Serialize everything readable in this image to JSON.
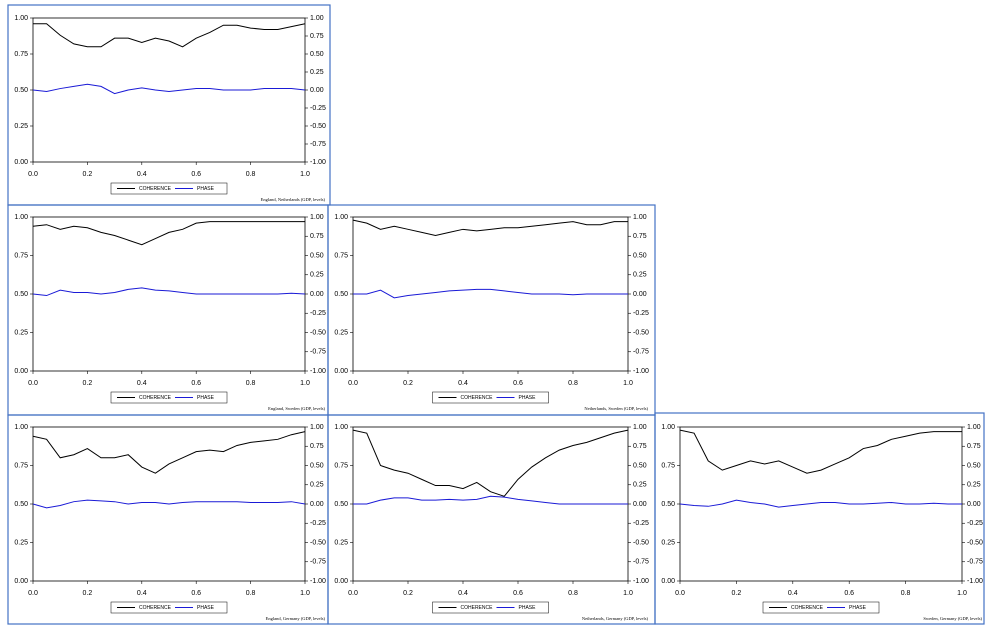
{
  "chart_data": [
    {
      "type": "line",
      "caption": "England, Netherlands (GDP, levels)",
      "x": [
        0,
        0.05,
        0.1,
        0.15,
        0.2,
        0.25,
        0.3,
        0.35,
        0.4,
        0.45,
        0.5,
        0.55,
        0.6,
        0.65,
        0.7,
        0.75,
        0.8,
        0.85,
        0.9,
        0.95,
        1
      ],
      "series": [
        {
          "name": "COHERENCE",
          "color": "#000000",
          "values": [
            0.96,
            0.96,
            0.88,
            0.82,
            0.8,
            0.8,
            0.86,
            0.86,
            0.83,
            0.86,
            0.84,
            0.8,
            0.86,
            0.9,
            0.95,
            0.95,
            0.93,
            0.92,
            0.92,
            0.94,
            0.96
          ]
        },
        {
          "name": "PHASE",
          "color": "#1a1ad6",
          "axis": "y2",
          "values": [
            0,
            -0.02,
            0.02,
            0.05,
            0.08,
            0.05,
            -0.05,
            0,
            0.03,
            0,
            -0.02,
            0,
            0.02,
            0.02,
            0,
            0,
            0,
            0.02,
            0.02,
            0.02,
            0
          ]
        }
      ],
      "xlim": [
        0,
        1
      ],
      "ylim": [
        0,
        1
      ],
      "y2lim": [
        -1,
        1
      ],
      "xticks": [
        {
          "value": 0,
          "label": "0.0"
        },
        {
          "value": 0.2,
          "label": "0.2"
        },
        {
          "value": 0.4,
          "label": "0.4"
        },
        {
          "value": 0.6,
          "label": "0.6"
        },
        {
          "value": 0.8,
          "label": "0.8"
        },
        {
          "value": 1,
          "label": "1.0"
        }
      ],
      "yticks": [
        {
          "value": 0,
          "label": "0.00"
        },
        {
          "value": 0.25,
          "label": "0.25"
        },
        {
          "value": 0.5,
          "label": "0.50"
        },
        {
          "value": 0.75,
          "label": "0.75"
        },
        {
          "value": 1,
          "label": "1.00"
        }
      ],
      "y2ticks": [
        {
          "value": -1,
          "label": "-1.00"
        },
        {
          "value": -0.75,
          "label": "-0.75"
        },
        {
          "value": -0.5,
          "label": "-0.50"
        },
        {
          "value": -0.25,
          "label": "-0.25"
        },
        {
          "value": 0,
          "label": "0.00"
        },
        {
          "value": 0.25,
          "label": "0.25"
        },
        {
          "value": 0.5,
          "label": "0.50"
        },
        {
          "value": 0.75,
          "label": "0.75"
        },
        {
          "value": 1,
          "label": "1.00"
        }
      ]
    },
    {
      "type": "line",
      "caption": "England, Sweden (GDP, levels)",
      "x": [
        0,
        0.05,
        0.1,
        0.15,
        0.2,
        0.25,
        0.3,
        0.35,
        0.4,
        0.45,
        0.5,
        0.55,
        0.6,
        0.65,
        0.7,
        0.75,
        0.8,
        0.85,
        0.9,
        0.95,
        1
      ],
      "series": [
        {
          "name": "COHERENCE",
          "color": "#000000",
          "values": [
            0.94,
            0.95,
            0.92,
            0.94,
            0.93,
            0.9,
            0.88,
            0.85,
            0.82,
            0.86,
            0.9,
            0.92,
            0.96,
            0.97,
            0.97,
            0.97,
            0.97,
            0.97,
            0.97,
            0.97,
            0.97
          ]
        },
        {
          "name": "PHASE",
          "color": "#1a1ad6",
          "axis": "y2",
          "values": [
            0,
            -0.02,
            0.05,
            0.02,
            0.02,
            0,
            0.02,
            0.06,
            0.08,
            0.05,
            0.04,
            0.02,
            0,
            0,
            0,
            0,
            0,
            0,
            0,
            0.01,
            0
          ]
        }
      ],
      "xlim": [
        0,
        1
      ],
      "ylim": [
        0,
        1
      ],
      "y2lim": [
        -1,
        1
      ],
      "xticks": [
        {
          "value": 0,
          "label": "0.0"
        },
        {
          "value": 0.2,
          "label": "0.2"
        },
        {
          "value": 0.4,
          "label": "0.4"
        },
        {
          "value": 0.6,
          "label": "0.6"
        },
        {
          "value": 0.8,
          "label": "0.8"
        },
        {
          "value": 1,
          "label": "1.0"
        }
      ],
      "yticks": [
        {
          "value": 0,
          "label": "0.00"
        },
        {
          "value": 0.25,
          "label": "0.25"
        },
        {
          "value": 0.5,
          "label": "0.50"
        },
        {
          "value": 0.75,
          "label": "0.75"
        },
        {
          "value": 1,
          "label": "1.00"
        }
      ],
      "y2ticks": [
        {
          "value": -1,
          "label": "-1.00"
        },
        {
          "value": -0.75,
          "label": "-0.75"
        },
        {
          "value": -0.5,
          "label": "-0.50"
        },
        {
          "value": -0.25,
          "label": "-0.25"
        },
        {
          "value": 0,
          "label": "0.00"
        },
        {
          "value": 0.25,
          "label": "0.25"
        },
        {
          "value": 0.5,
          "label": "0.50"
        },
        {
          "value": 0.75,
          "label": "0.75"
        },
        {
          "value": 1,
          "label": "1.00"
        }
      ]
    },
    {
      "type": "line",
      "caption": "Netherlands, Sweden (GDP, levels)",
      "x": [
        0,
        0.05,
        0.1,
        0.15,
        0.2,
        0.25,
        0.3,
        0.35,
        0.4,
        0.45,
        0.5,
        0.55,
        0.6,
        0.65,
        0.7,
        0.75,
        0.8,
        0.85,
        0.9,
        0.95,
        1
      ],
      "series": [
        {
          "name": "COHERENCE",
          "color": "#000000",
          "values": [
            0.98,
            0.96,
            0.92,
            0.94,
            0.92,
            0.9,
            0.88,
            0.9,
            0.92,
            0.91,
            0.92,
            0.93,
            0.93,
            0.94,
            0.95,
            0.96,
            0.97,
            0.95,
            0.95,
            0.97,
            0.97
          ]
        },
        {
          "name": "PHASE",
          "color": "#1a1ad6",
          "axis": "y2",
          "values": [
            0,
            0,
            0.05,
            -0.05,
            -0.02,
            0,
            0.02,
            0.04,
            0.05,
            0.06,
            0.06,
            0.04,
            0.02,
            0,
            0,
            0,
            -0.01,
            0,
            0,
            0,
            0
          ]
        }
      ],
      "xlim": [
        0,
        1
      ],
      "ylim": [
        0,
        1
      ],
      "y2lim": [
        -1,
        1
      ],
      "xticks": [
        {
          "value": 0,
          "label": "0.0"
        },
        {
          "value": 0.2,
          "label": "0.2"
        },
        {
          "value": 0.4,
          "label": "0.4"
        },
        {
          "value": 0.6,
          "label": "0.6"
        },
        {
          "value": 0.8,
          "label": "0.8"
        },
        {
          "value": 1,
          "label": "1.0"
        }
      ],
      "yticks": [
        {
          "value": 0,
          "label": "0.00"
        },
        {
          "value": 0.25,
          "label": "0.25"
        },
        {
          "value": 0.5,
          "label": "0.50"
        },
        {
          "value": 0.75,
          "label": "0.75"
        },
        {
          "value": 1,
          "label": "1.00"
        }
      ],
      "y2ticks": [
        {
          "value": -1,
          "label": "-1.00"
        },
        {
          "value": -0.75,
          "label": "-0.75"
        },
        {
          "value": -0.5,
          "label": "-0.50"
        },
        {
          "value": -0.25,
          "label": "-0.25"
        },
        {
          "value": 0,
          "label": "0.00"
        },
        {
          "value": 0.25,
          "label": "0.25"
        },
        {
          "value": 0.5,
          "label": "0.50"
        },
        {
          "value": 0.75,
          "label": "0.75"
        },
        {
          "value": 1,
          "label": "1.00"
        }
      ]
    },
    {
      "type": "line",
      "caption": "England, Germany (GDP, levels)",
      "x": [
        0,
        0.05,
        0.1,
        0.15,
        0.2,
        0.25,
        0.3,
        0.35,
        0.4,
        0.45,
        0.5,
        0.55,
        0.6,
        0.65,
        0.7,
        0.75,
        0.8,
        0.85,
        0.9,
        0.95,
        1
      ],
      "series": [
        {
          "name": "COHERENCE",
          "color": "#000000",
          "values": [
            0.94,
            0.92,
            0.8,
            0.82,
            0.86,
            0.8,
            0.8,
            0.82,
            0.74,
            0.7,
            0.76,
            0.8,
            0.84,
            0.85,
            0.84,
            0.88,
            0.9,
            0.91,
            0.92,
            0.95,
            0.97
          ]
        },
        {
          "name": "PHASE",
          "color": "#1a1ad6",
          "axis": "y2",
          "values": [
            0,
            -0.05,
            -0.02,
            0.03,
            0.05,
            0.04,
            0.03,
            0,
            0.02,
            0.02,
            0,
            0.02,
            0.03,
            0.03,
            0.03,
            0.03,
            0.02,
            0.02,
            0.02,
            0.03,
            0
          ]
        }
      ],
      "xlim": [
        0,
        1
      ],
      "ylim": [
        0,
        1
      ],
      "y2lim": [
        -1,
        1
      ],
      "xticks": [
        {
          "value": 0,
          "label": "0.0"
        },
        {
          "value": 0.2,
          "label": "0.2"
        },
        {
          "value": 0.4,
          "label": "0.4"
        },
        {
          "value": 0.6,
          "label": "0.6"
        },
        {
          "value": 0.8,
          "label": "0.8"
        },
        {
          "value": 1,
          "label": "1.0"
        }
      ],
      "yticks": [
        {
          "value": 0,
          "label": "0.00"
        },
        {
          "value": 0.25,
          "label": "0.25"
        },
        {
          "value": 0.5,
          "label": "0.50"
        },
        {
          "value": 0.75,
          "label": "0.75"
        },
        {
          "value": 1,
          "label": "1.00"
        }
      ],
      "y2ticks": [
        {
          "value": -1,
          "label": "-1.00"
        },
        {
          "value": -0.75,
          "label": "-0.75"
        },
        {
          "value": -0.5,
          "label": "-0.50"
        },
        {
          "value": -0.25,
          "label": "-0.25"
        },
        {
          "value": 0,
          "label": "0.00"
        },
        {
          "value": 0.25,
          "label": "0.25"
        },
        {
          "value": 0.5,
          "label": "0.50"
        },
        {
          "value": 0.75,
          "label": "0.75"
        },
        {
          "value": 1,
          "label": "1.00"
        }
      ]
    },
    {
      "type": "line",
      "caption": "Netherlands, Germany (GDP, levels)",
      "x": [
        0,
        0.05,
        0.1,
        0.15,
        0.2,
        0.25,
        0.3,
        0.35,
        0.4,
        0.45,
        0.5,
        0.55,
        0.6,
        0.65,
        0.7,
        0.75,
        0.8,
        0.85,
        0.9,
        0.95,
        1
      ],
      "series": [
        {
          "name": "COHERENCE",
          "color": "#000000",
          "values": [
            0.98,
            0.96,
            0.75,
            0.72,
            0.7,
            0.66,
            0.62,
            0.62,
            0.6,
            0.64,
            0.58,
            0.55,
            0.66,
            0.74,
            0.8,
            0.85,
            0.88,
            0.9,
            0.93,
            0.96,
            0.98
          ]
        },
        {
          "name": "PHASE",
          "color": "#1a1ad6",
          "axis": "y2",
          "values": [
            0,
            0,
            0.05,
            0.08,
            0.08,
            0.05,
            0.05,
            0.06,
            0.05,
            0.06,
            0.1,
            0.09,
            0.06,
            0.04,
            0.02,
            0,
            0,
            0,
            0,
            0,
            0
          ]
        }
      ],
      "xlim": [
        0,
        1
      ],
      "ylim": [
        0,
        1
      ],
      "y2lim": [
        -1,
        1
      ],
      "xticks": [
        {
          "value": 0,
          "label": "0.0"
        },
        {
          "value": 0.2,
          "label": "0.2"
        },
        {
          "value": 0.4,
          "label": "0.4"
        },
        {
          "value": 0.6,
          "label": "0.6"
        },
        {
          "value": 0.8,
          "label": "0.8"
        },
        {
          "value": 1,
          "label": "1.0"
        }
      ],
      "yticks": [
        {
          "value": 0,
          "label": "0.00"
        },
        {
          "value": 0.25,
          "label": "0.25"
        },
        {
          "value": 0.5,
          "label": "0.50"
        },
        {
          "value": 0.75,
          "label": "0.75"
        },
        {
          "value": 1,
          "label": "1.00"
        }
      ],
      "y2ticks": [
        {
          "value": -1,
          "label": "-1.00"
        },
        {
          "value": -0.75,
          "label": "-0.75"
        },
        {
          "value": -0.5,
          "label": "-0.50"
        },
        {
          "value": -0.25,
          "label": "-0.25"
        },
        {
          "value": 0,
          "label": "0.00"
        },
        {
          "value": 0.25,
          "label": "0.25"
        },
        {
          "value": 0.5,
          "label": "0.50"
        },
        {
          "value": 0.75,
          "label": "0.75"
        },
        {
          "value": 1,
          "label": "1.00"
        }
      ]
    },
    {
      "type": "line",
      "caption": "Sweden, Germany (GDP, levels)",
      "x": [
        0,
        0.05,
        0.1,
        0.15,
        0.2,
        0.25,
        0.3,
        0.35,
        0.4,
        0.45,
        0.5,
        0.55,
        0.6,
        0.65,
        0.7,
        0.75,
        0.8,
        0.85,
        0.9,
        0.95,
        1
      ],
      "series": [
        {
          "name": "COHERENCE",
          "color": "#000000",
          "values": [
            0.98,
            0.96,
            0.78,
            0.72,
            0.75,
            0.78,
            0.76,
            0.78,
            0.74,
            0.7,
            0.72,
            0.76,
            0.8,
            0.86,
            0.88,
            0.92,
            0.94,
            0.96,
            0.97,
            0.97,
            0.97
          ]
        },
        {
          "name": "PHASE",
          "color": "#1a1ad6",
          "axis": "y2",
          "values": [
            0,
            -0.02,
            -0.03,
            0,
            0.05,
            0.02,
            0,
            -0.04,
            -0.02,
            0,
            0.02,
            0.02,
            0,
            0,
            0.01,
            0.02,
            0,
            0,
            0.01,
            0,
            0
          ]
        }
      ],
      "xlim": [
        0,
        1
      ],
      "ylim": [
        0,
        1
      ],
      "y2lim": [
        -1,
        1
      ],
      "xticks": [
        {
          "value": 0,
          "label": "0.0"
        },
        {
          "value": 0.2,
          "label": "0.2"
        },
        {
          "value": 0.4,
          "label": "0.4"
        },
        {
          "value": 0.6,
          "label": "0.6"
        },
        {
          "value": 0.8,
          "label": "0.8"
        },
        {
          "value": 1,
          "label": "1.0"
        }
      ],
      "yticks": [
        {
          "value": 0,
          "label": "0.00"
        },
        {
          "value": 0.25,
          "label": "0.25"
        },
        {
          "value": 0.5,
          "label": "0.50"
        },
        {
          "value": 0.75,
          "label": "0.75"
        },
        {
          "value": 1,
          "label": "1.00"
        }
      ],
      "y2ticks": [
        {
          "value": -1,
          "label": "-1.00"
        },
        {
          "value": -0.75,
          "label": "-0.75"
        },
        {
          "value": -0.5,
          "label": "-0.50"
        },
        {
          "value": -0.25,
          "label": "-0.25"
        },
        {
          "value": 0,
          "label": "0.00"
        },
        {
          "value": 0.25,
          "label": "0.25"
        },
        {
          "value": 0.5,
          "label": "0.50"
        },
        {
          "value": 0.75,
          "label": "0.75"
        },
        {
          "value": 1,
          "label": "1.00"
        }
      ]
    }
  ]
}
